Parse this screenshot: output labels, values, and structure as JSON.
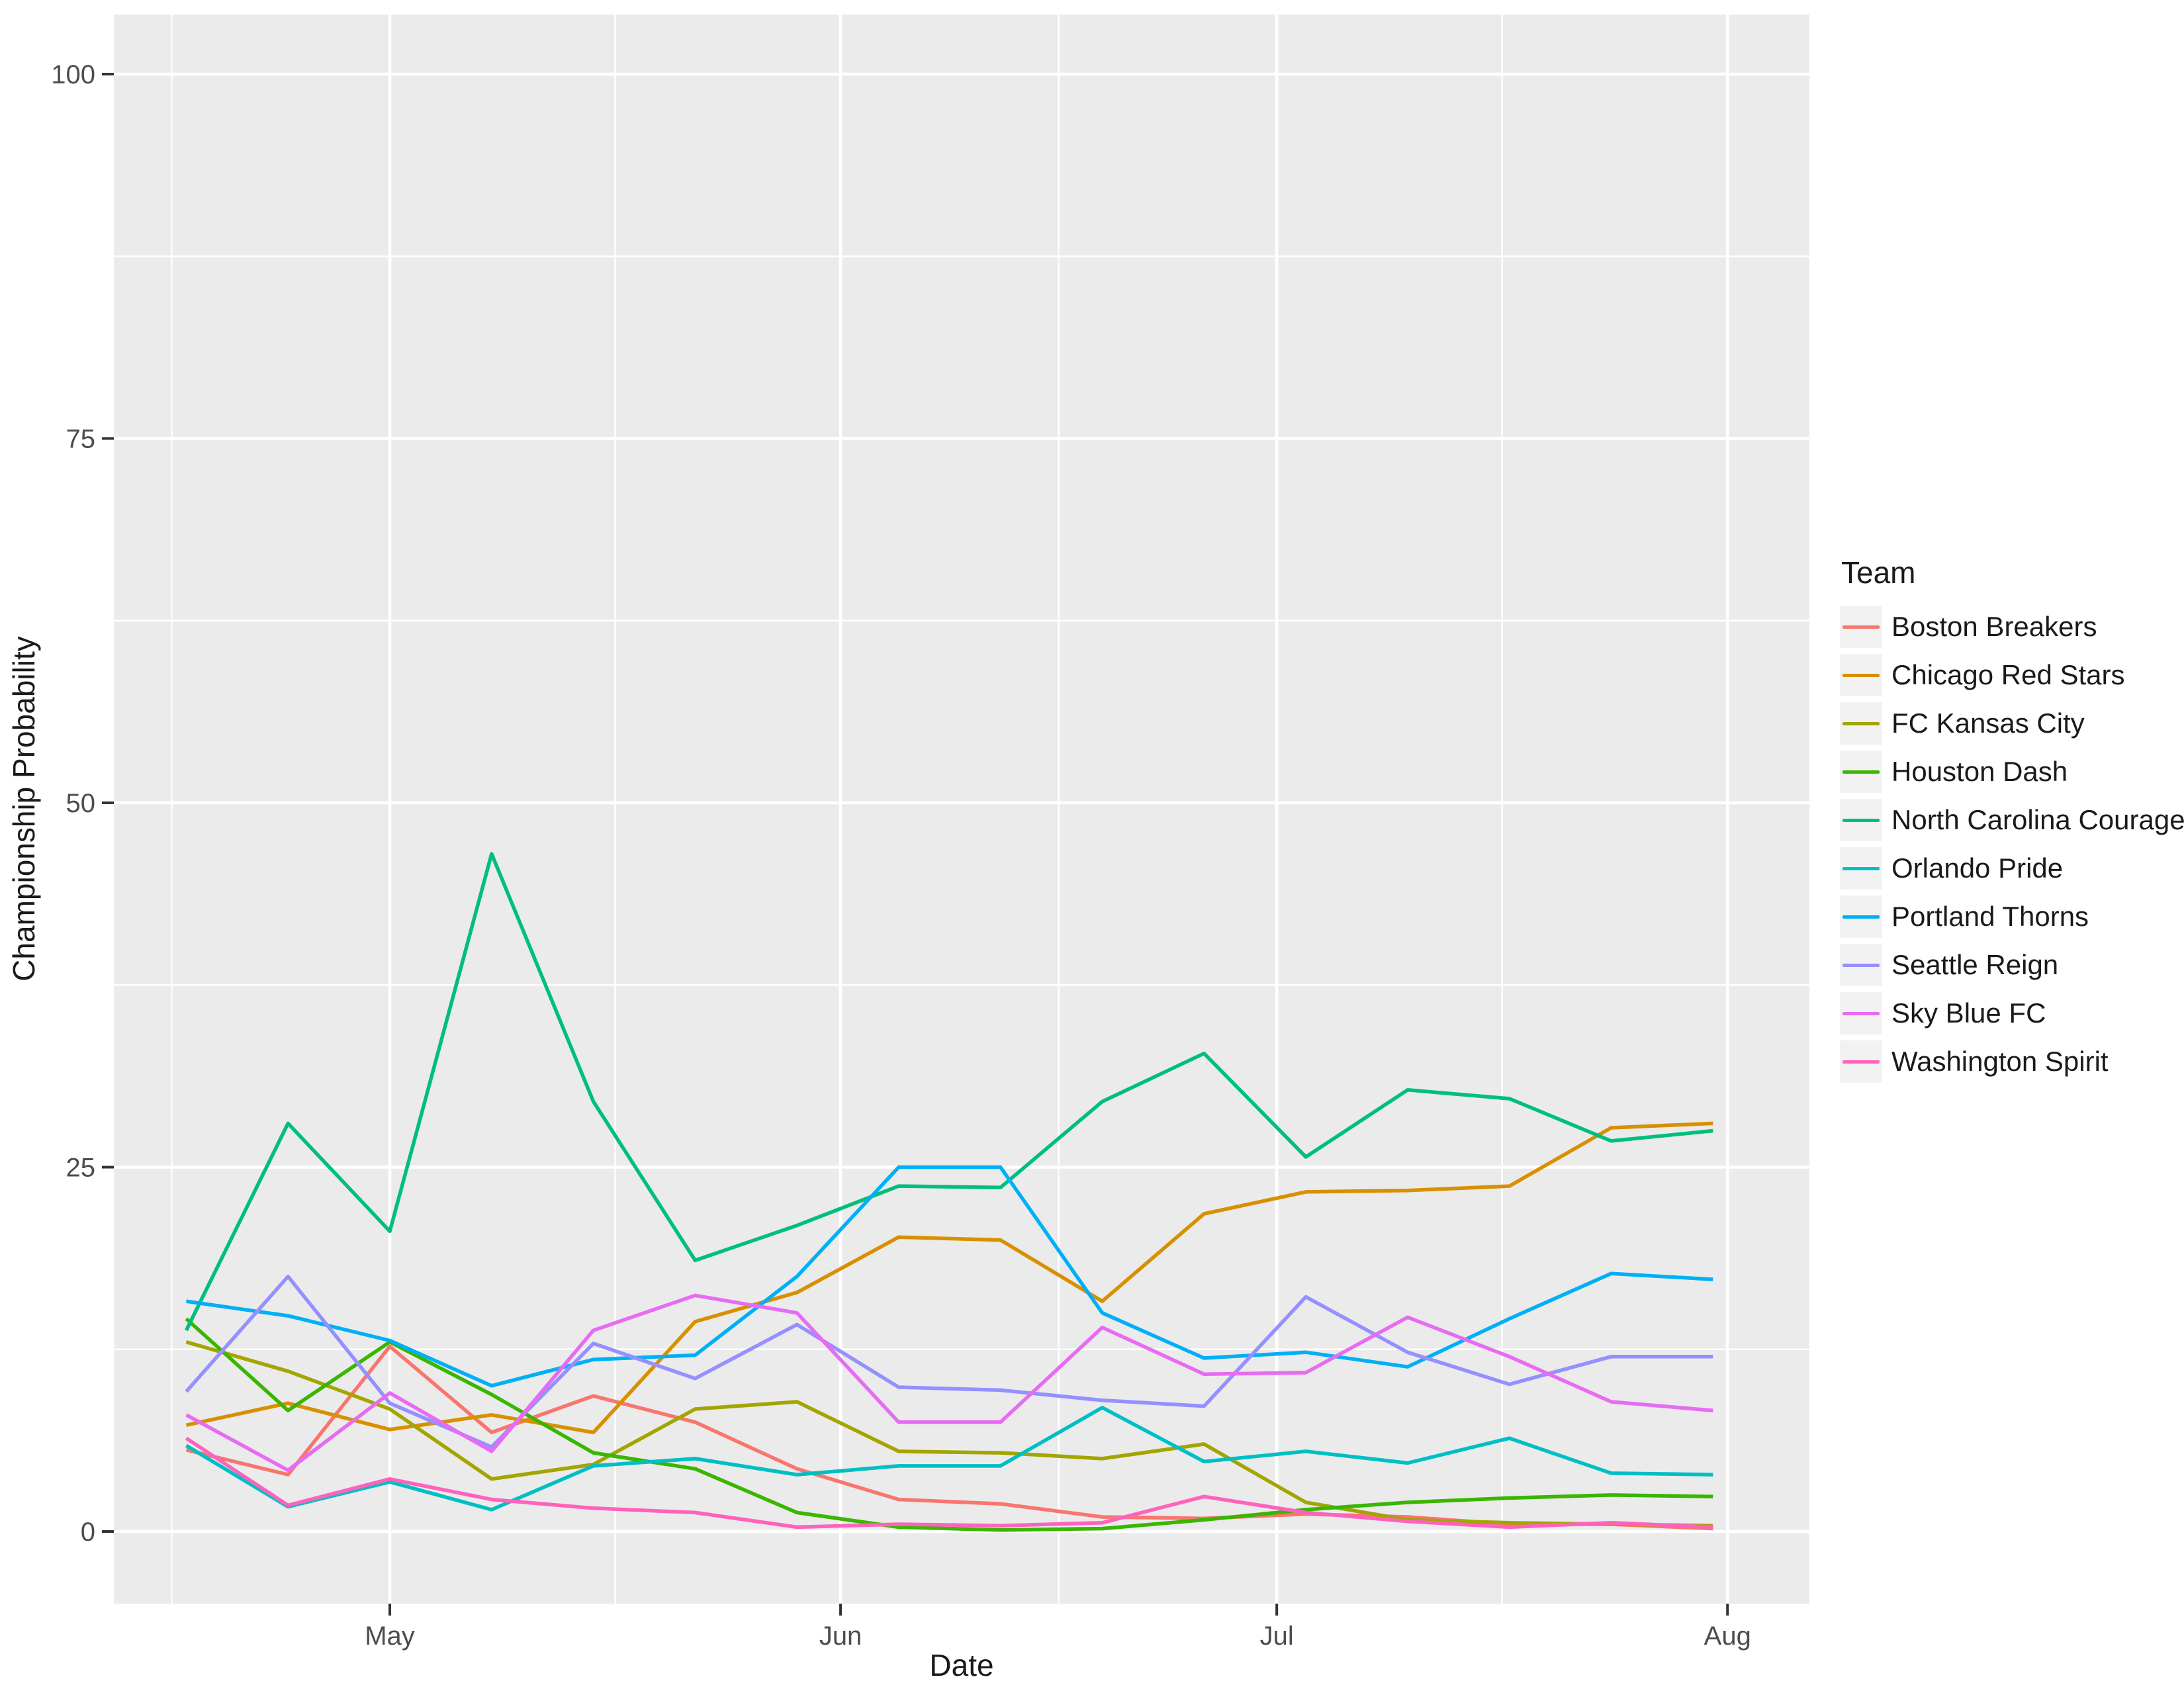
{
  "legend": {
    "title": "Team"
  },
  "axes": {
    "x_label": "Date",
    "y_label": "Championship Probability",
    "x_tick_labels": [
      "May",
      "Jun",
      "Jul",
      "Aug"
    ],
    "y_tick_labels": [
      "0",
      "25",
      "50",
      "75",
      "100"
    ]
  },
  "chart_data": {
    "type": "line",
    "title": "",
    "xlabel": "Date",
    "ylabel": "Championship Probability",
    "ylim": [
      0,
      100
    ],
    "y_major_ticks": [
      0,
      25,
      50,
      75,
      100
    ],
    "y_minor_ticks": [
      12.5,
      37.5,
      62.5,
      87.5
    ],
    "x_tick_months": {
      "labels": [
        "May",
        "Jun",
        "Jul",
        "Aug"
      ],
      "days_since_may1": [
        0,
        31,
        61,
        92
      ]
    },
    "x_minor_days_since_may1": [
      -15,
      15.5,
      46,
      76.5
    ],
    "grid": "on",
    "legend_position": "right",
    "panel_bg": "#EBEBEB",
    "grid_color": "#FFFFFF",
    "tick_color": "#333333",
    "axis_text_color": "#4D4D4D",
    "text_color": "#1A1A1A",
    "legend_key_bg": "#F2F2F2",
    "x_dates": [
      "Apr 17",
      "Apr 24",
      "May 1",
      "May 8",
      "May 15",
      "May 22",
      "May 29",
      "Jun 5",
      "Jun 12",
      "Jun 19",
      "Jun 26",
      "Jul 3",
      "Jul 10",
      "Jul 17",
      "Jul 24",
      "Jul 31"
    ],
    "x_days_since_may1": [
      -14,
      -7,
      0,
      7,
      14,
      21,
      28,
      35,
      42,
      49,
      56,
      63,
      70,
      77,
      84,
      91
    ],
    "series": [
      {
        "name": "Boston Breakers",
        "color": "#F8766D",
        "values": [
          5.6,
          3.9,
          12.7,
          6.8,
          9.3,
          7.5,
          4.3,
          2.2,
          1.9,
          1.0,
          0.9,
          1.2,
          1.0,
          0.5,
          0.5,
          0.2
        ]
      },
      {
        "name": "Chicago Red Stars",
        "color": "#D89000",
        "values": [
          7.3,
          8.8,
          7.0,
          8.0,
          6.8,
          14.4,
          16.4,
          20.2,
          20.0,
          15.8,
          21.8,
          23.3,
          23.4,
          23.7,
          27.7,
          28.0
        ]
      },
      {
        "name": "FC Kansas City",
        "color": "#A3A500",
        "values": [
          13.0,
          11.0,
          8.4,
          3.6,
          4.6,
          8.4,
          8.9,
          5.5,
          5.4,
          5.0,
          6.0,
          2.0,
          0.8,
          0.6,
          0.5,
          0.4
        ]
      },
      {
        "name": "Houston Dash",
        "color": "#39B600",
        "values": [
          14.6,
          8.3,
          13.0,
          9.4,
          5.4,
          4.3,
          1.3,
          0.3,
          0.1,
          0.2,
          0.8,
          1.5,
          2.0,
          2.3,
          2.5,
          2.4
        ]
      },
      {
        "name": "North Carolina Courage",
        "color": "#00BF7D",
        "values": [
          13.8,
          28.0,
          20.6,
          46.5,
          29.5,
          18.6,
          21.0,
          23.7,
          23.6,
          29.5,
          32.8,
          25.7,
          30.3,
          29.7,
          26.8,
          27.5
        ]
      },
      {
        "name": "Orlando Pride",
        "color": "#00BFC4",
        "values": [
          5.9,
          1.7,
          3.4,
          1.5,
          4.5,
          5.0,
          3.9,
          4.5,
          4.5,
          8.5,
          4.8,
          5.5,
          4.7,
          6.4,
          4.0,
          3.9
        ]
      },
      {
        "name": "Portland Thorns",
        "color": "#00B0F6",
        "values": [
          15.8,
          14.8,
          13.1,
          10.0,
          11.8,
          12.1,
          17.5,
          25.0,
          25.0,
          15.0,
          11.9,
          12.3,
          11.3,
          14.6,
          17.7,
          17.3
        ]
      },
      {
        "name": "Seattle Reign",
        "color": "#9590FF",
        "values": [
          9.6,
          17.5,
          8.8,
          5.8,
          12.9,
          10.5,
          14.2,
          9.9,
          9.7,
          9.0,
          8.6,
          16.1,
          12.3,
          10.1,
          12.0,
          12.0
        ]
      },
      {
        "name": "Sky Blue FC",
        "color": "#E76BF3",
        "values": [
          8.0,
          4.2,
          9.5,
          5.5,
          13.8,
          16.2,
          15.0,
          7.5,
          7.5,
          14.0,
          10.8,
          10.9,
          14.7,
          12.0,
          8.9,
          8.3
        ]
      },
      {
        "name": "Washington Spirit",
        "color": "#FF62BC",
        "values": [
          6.4,
          1.8,
          3.6,
          2.2,
          1.6,
          1.3,
          0.3,
          0.5,
          0.4,
          0.6,
          2.4,
          1.3,
          0.7,
          0.3,
          0.6,
          0.3
        ]
      }
    ]
  }
}
